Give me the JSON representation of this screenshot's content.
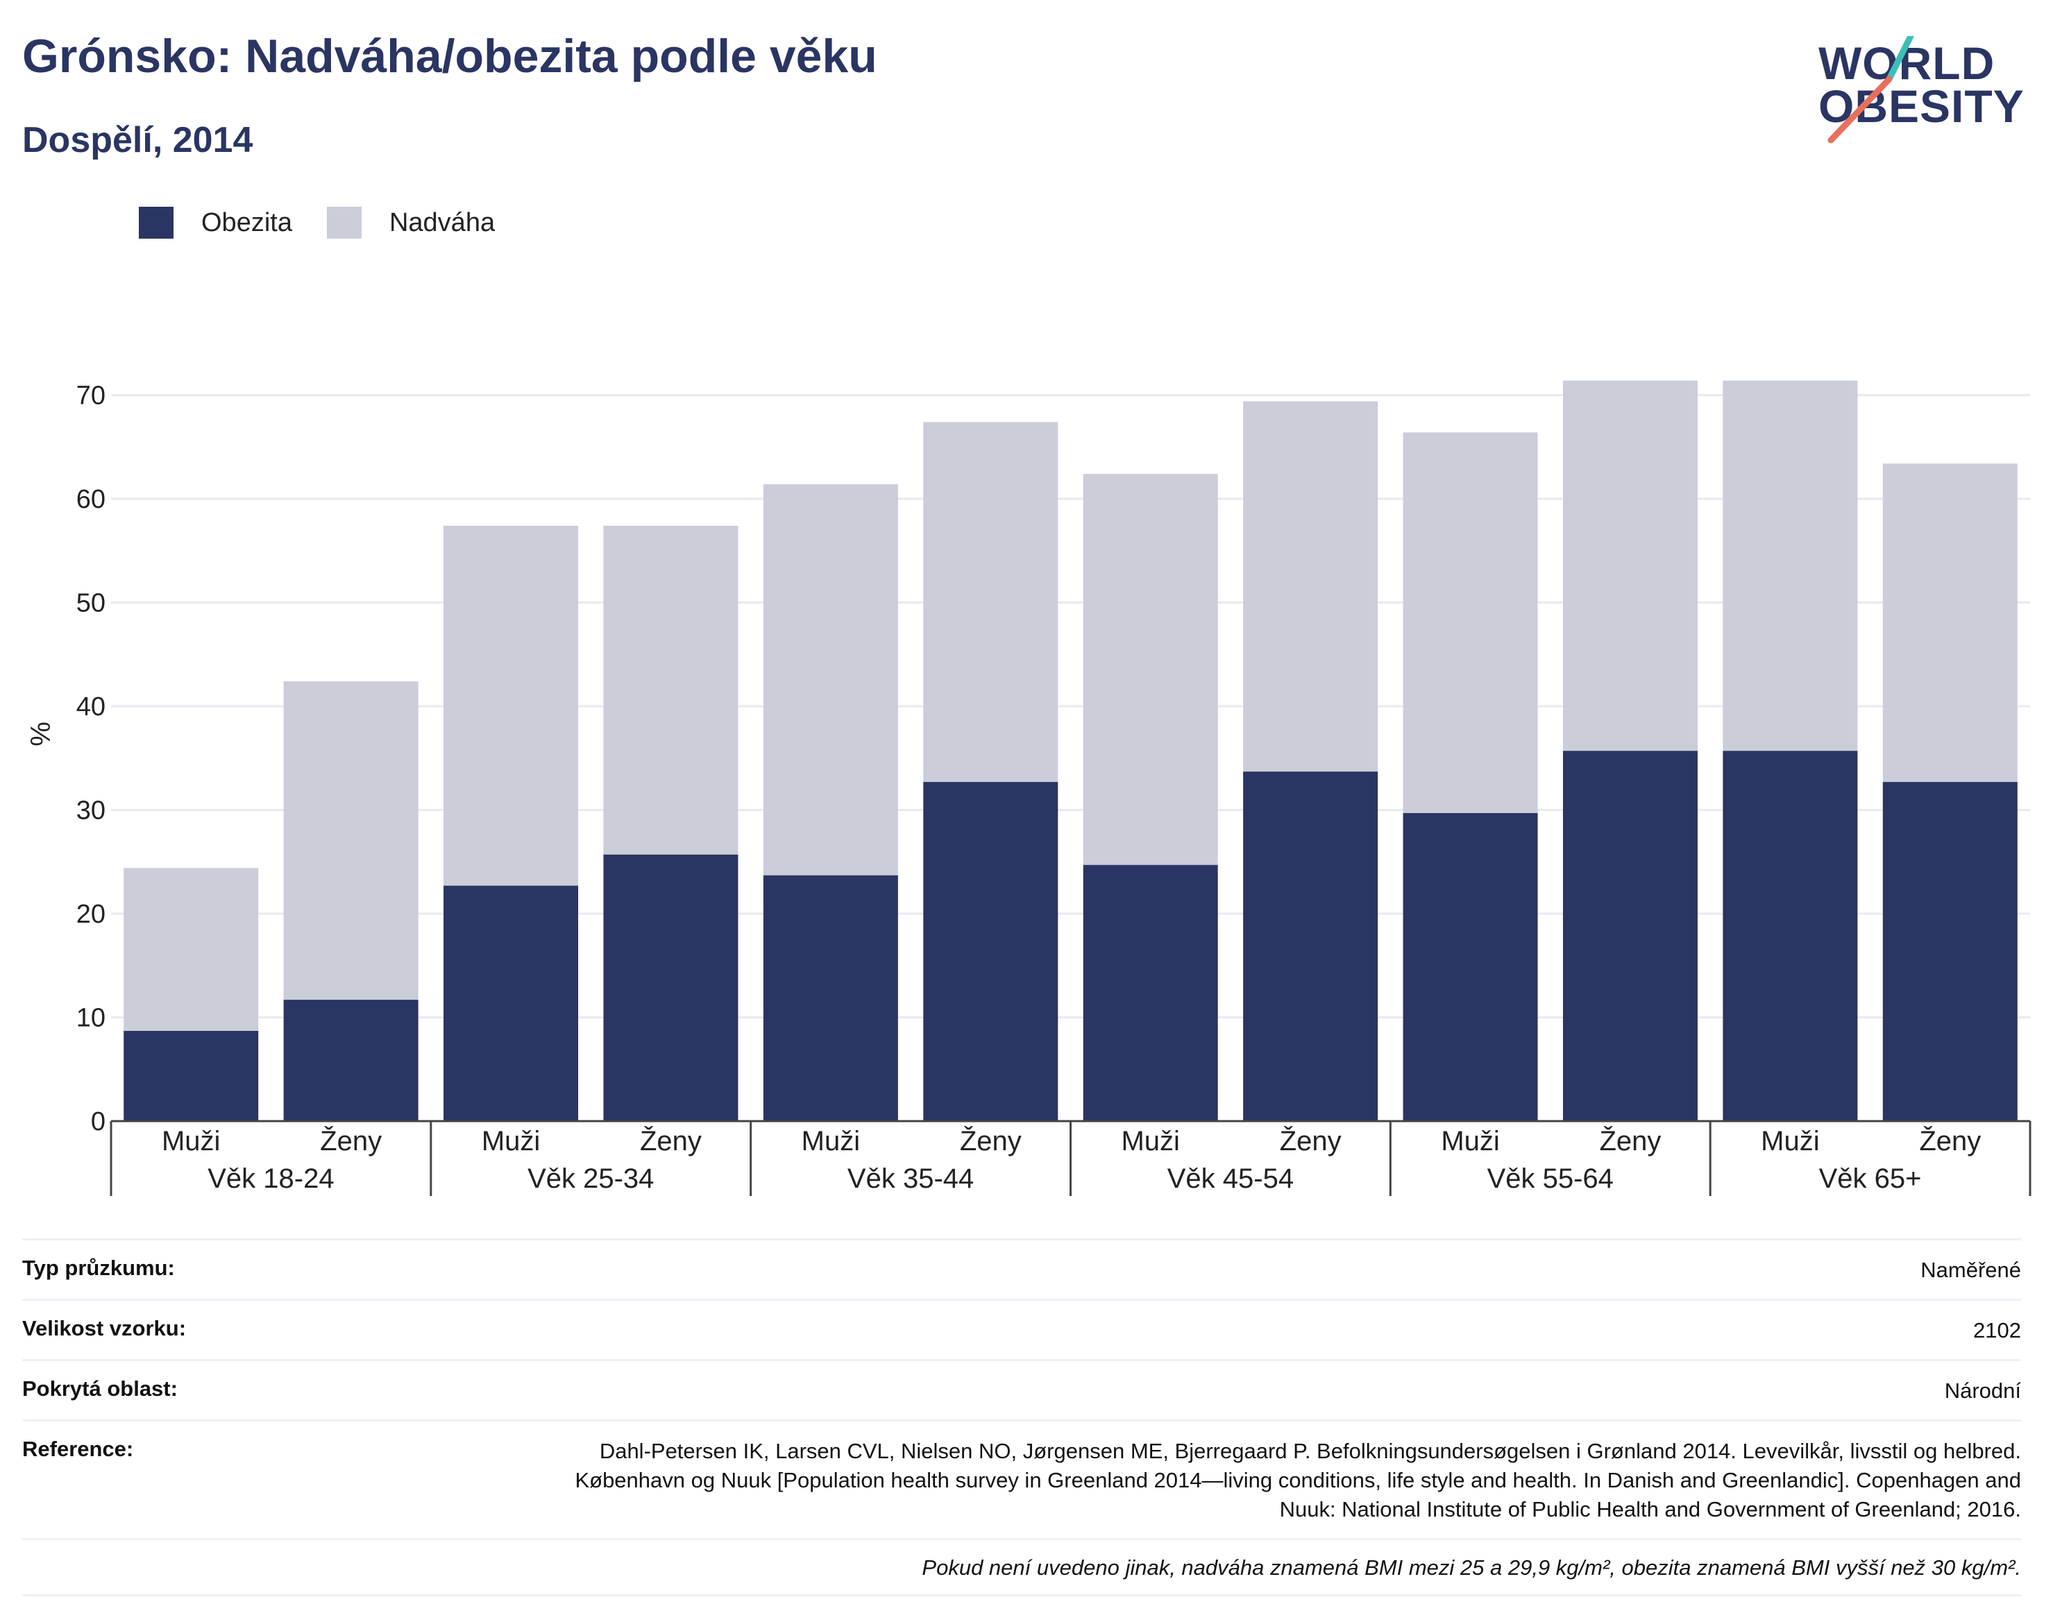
{
  "header": {
    "title": "Grónsko: Nadváha/obezita podle věku",
    "subtitle": "Dospělí, 2014"
  },
  "logo": {
    "line1": "WORLD",
    "line2": "OBESITY",
    "accent_colors": [
      "#3dbfb7",
      "#e8705a"
    ]
  },
  "colors": {
    "obesity": "#2a3563",
    "overweight": "#cbcdd9",
    "grid": "#e8eaf0",
    "axis": "#444444"
  },
  "legend": [
    {
      "label": "Obezita",
      "color": "#2a3563"
    },
    {
      "label": "Nadváha",
      "color": "#cbcdd9"
    }
  ],
  "chart_data": {
    "type": "bar",
    "stacked": true,
    "ylabel": "%",
    "ylim": [
      0,
      75
    ],
    "yticks": [
      0,
      10,
      20,
      30,
      40,
      50,
      60,
      70
    ],
    "grid": true,
    "legend_position": "top-left",
    "categories": [
      "Muži",
      "Ženy",
      "Muži",
      "Ženy",
      "Muži",
      "Ženy",
      "Muži",
      "Ženy",
      "Muži",
      "Ženy",
      "Muži",
      "Ženy"
    ],
    "groups": [
      "Věk 18-24",
      "Věk 25-34",
      "Věk 35-44",
      "Věk 45-54",
      "Věk 55-64",
      "Věk 65+"
    ],
    "series": [
      {
        "name": "Obezita",
        "values": [
          8.7,
          11.7,
          22.7,
          25.7,
          23.7,
          32.7,
          24.7,
          33.7,
          29.7,
          35.7,
          35.7,
          32.7
        ]
      },
      {
        "name": "Nadváha",
        "values": [
          15.7,
          30.7,
          34.7,
          31.7,
          37.7,
          34.7,
          37.7,
          35.7,
          36.7,
          35.7,
          35.7,
          30.7
        ]
      }
    ]
  },
  "info": {
    "rows": [
      {
        "key": "Typ průzkumu:",
        "value": "Naměřené"
      },
      {
        "key": "Velikost vzorku:",
        "value": "2102"
      },
      {
        "key": "Pokrytá oblast:",
        "value": "Národní"
      },
      {
        "key": "Reference:",
        "value": "Dahl-Petersen IK, Larsen CVL, Nielsen NO, Jørgensen ME, Bjerregaard P. Befolkningsundersøgelsen i Grønland 2014. Levevilkår, livsstil og helbred. København og Nuuk [Population health survey in Greenland 2014—living conditions, life style and health. In Danish and Greenlandic]. Copenhagen and Nuuk: National Institute of Public Health and Government of Greenland; 2016."
      }
    ],
    "note": "Pokud není uvedeno jinak, nadváha znamená BMI mezi 25 a 29,9 kg/m², obezita znamená BMI vyšší než 30 kg/m²."
  }
}
